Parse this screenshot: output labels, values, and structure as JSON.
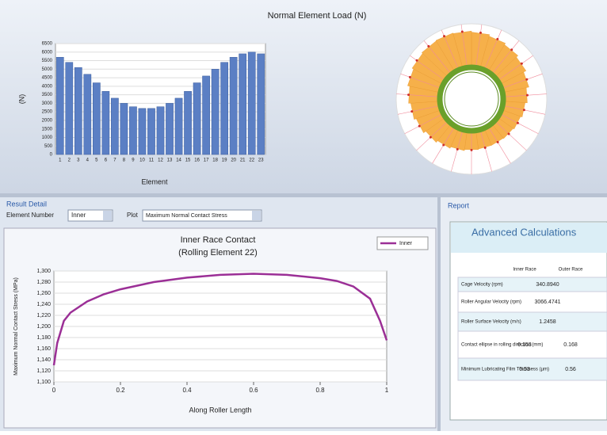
{
  "chart_data": [
    {
      "type": "bar",
      "title": "Normal Element Load (N)",
      "y_label": "(N)",
      "x_label": "Element",
      "categories": [
        "1",
        "2",
        "3",
        "4",
        "5",
        "6",
        "7",
        "8",
        "9",
        "10",
        "11",
        "12",
        "13",
        "14",
        "15",
        "16",
        "17",
        "18",
        "19",
        "20",
        "21",
        "22",
        "23"
      ],
      "values": [
        5700,
        5400,
        5100,
        4700,
        4200,
        3700,
        3300,
        3000,
        2800,
        2700,
        2700,
        2800,
        3000,
        3300,
        3700,
        4200,
        4600,
        5000,
        5400,
        5700,
        5900,
        6000,
        5900
      ],
      "color": "#5b7fc4",
      "ylim": [
        0,
        6500
      ],
      "yticks": [
        0,
        500,
        1000,
        1500,
        2000,
        2500,
        3000,
        3500,
        4000,
        4500,
        5000,
        5500,
        6000,
        6500
      ],
      "grid": true
    },
    {
      "type": "line",
      "title": "Inner Race Contact",
      "subtitle": "(Rolling Element 22)",
      "y_label": "Maximum Normal Contact Stress (MPa)",
      "x_label": "Along Roller Length",
      "x": [
        0,
        0.01,
        0.03,
        0.05,
        0.1,
        0.15,
        0.2,
        0.3,
        0.4,
        0.5,
        0.6,
        0.7,
        0.8,
        0.85,
        0.9,
        0.95,
        0.98,
        1
      ],
      "series": [
        {
          "name": "Inner",
          "color": "#9b2f96",
          "values": [
            1130,
            1170,
            1210,
            1225,
            1245,
            1258,
            1267,
            1280,
            1288,
            1293,
            1295,
            1293,
            1287,
            1282,
            1272,
            1250,
            1210,
            1175
          ]
        }
      ],
      "xlim": [
        0,
        1
      ],
      "xticks": [
        0,
        0.2,
        0.4,
        0.6,
        0.8,
        1
      ],
      "ylim": [
        1100,
        1300
      ],
      "yticks": [
        {
          "value": 1100,
          "label": "1,100"
        },
        {
          "value": 1120,
          "label": "1,120"
        },
        {
          "value": 1140,
          "label": "1,140"
        },
        {
          "value": 1160,
          "label": "1,160"
        },
        {
          "value": 1180,
          "label": "1,180"
        },
        {
          "value": 1200,
          "label": "1,200"
        },
        {
          "value": 1220,
          "label": "1,220"
        },
        {
          "value": 1240,
          "label": "1,240"
        },
        {
          "value": 1260,
          "label": "1,260"
        },
        {
          "value": 1280,
          "label": "1,280"
        },
        {
          "value": 1300,
          "label": "1,300"
        }
      ],
      "grid": true,
      "legend": "top-right"
    }
  ],
  "controls": {
    "panel_title": "Result Detail",
    "element_label": "Element Number",
    "element_value": "Inner",
    "plot_label": "Plot",
    "plot_value": "Maximum Normal Contact Stress"
  },
  "report": {
    "panel_title": "Report",
    "table_title": "Advanced Calculations",
    "columns": [
      "Inner Race",
      "Outer Race"
    ],
    "rows": [
      {
        "label": "Cage Velocity (rpm)",
        "cells": [
          "340.8940"
        ]
      },
      {
        "label": "Roller Angular Velocity (rpm)",
        "cells": [
          "3066.4741"
        ]
      },
      {
        "label": "Roller Surface Velocity (m/s)",
        "cells": [
          "1.2458"
        ]
      },
      {
        "label": "Contact ellipse in rolling direction (mm)",
        "cells": [
          "0.153",
          "0.168"
        ]
      },
      {
        "label": "Minimum Lubricating Film Thickness (µm)",
        "cells": [
          "0.53",
          "0.56"
        ]
      }
    ]
  }
}
